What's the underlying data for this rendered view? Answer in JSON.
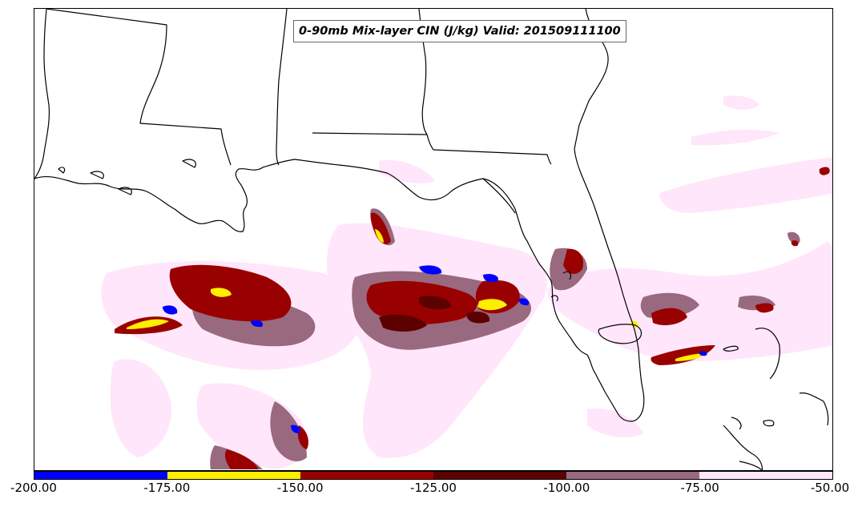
{
  "title": "0-90mb Mix-layer CIN (J/kg) Valid: 201509111100",
  "map": {
    "region": "U.S. Gulf Coast, Gulf of Mexico and Florida",
    "variable": "0-90mb Mix-layer CIN",
    "units": "J/kg",
    "valid_time": "201509111100"
  },
  "colorbar": {
    "levels": [
      "-200.00",
      "-175.00",
      "-150.00",
      "-125.00",
      "-100.00",
      "-75.00",
      "-50.00"
    ],
    "colors": [
      "#0000ff",
      "#ffee00",
      "#990000",
      "#5c0000",
      "#99697f",
      "#ffe6fa"
    ]
  },
  "colors": {
    "coastline": "#000000",
    "background": "#ffffff"
  }
}
